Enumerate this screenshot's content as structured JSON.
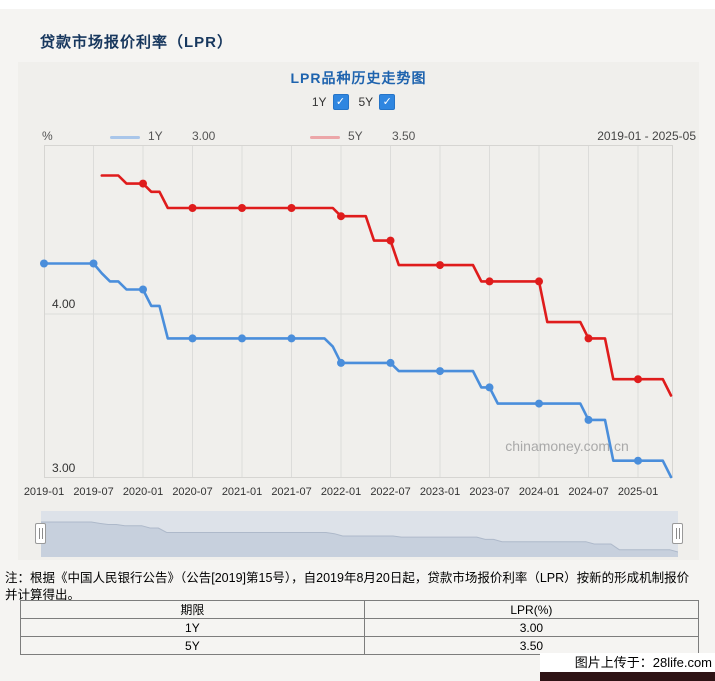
{
  "page": {
    "title": "贷款市场报价利率（LPR）",
    "uploader_watermark": "图片上传于：28life.com"
  },
  "chart": {
    "title": "LPR品种历史走势图",
    "unit": "%",
    "checkboxes": [
      {
        "label": "1Y",
        "checked": true,
        "check_glyph": "✓"
      },
      {
        "label": "5Y",
        "checked": true,
        "check_glyph": "✓"
      }
    ],
    "legend": [
      {
        "label": "1Y",
        "value": "3.00",
        "swatch_color": "#a9c6ea"
      },
      {
        "label": "5Y",
        "value": "3.50",
        "swatch_color": "#eca6a8"
      }
    ],
    "date_range": "2019-01 - 2025-05",
    "watermark": "chinamoney.com.cn",
    "y_tick_labels": [
      "4.00",
      "3.00"
    ],
    "x_tick_labels": [
      "2019-01",
      "2019-07",
      "2020-01",
      "2020-07",
      "2021-01",
      "2021-07",
      "2022-01",
      "2022-07",
      "2023-01",
      "2023-07",
      "2024-01",
      "2024-07",
      "2025-01"
    ]
  },
  "chart_data": {
    "type": "line",
    "title": "LPR品种历史走势图",
    "ylabel": "%",
    "x_range": [
      "2019-01",
      "2025-05"
    ],
    "ylim": [
      3.0,
      5.03
    ],
    "y_ticks": [
      3.0,
      4.0
    ],
    "grid": true,
    "legend_position": "top-left",
    "step_interpolation": "monthly points, value held until next change",
    "markers_at": "every January and July",
    "series": [
      {
        "name": "1Y",
        "color": "#4a8edb",
        "changes": [
          [
            "2019-01",
            4.31
          ],
          [
            "2019-08",
            4.25
          ],
          [
            "2019-09",
            4.2
          ],
          [
            "2019-11",
            4.15
          ],
          [
            "2020-02",
            4.05
          ],
          [
            "2020-04",
            3.85
          ],
          [
            "2021-12",
            3.8
          ],
          [
            "2022-01",
            3.7
          ],
          [
            "2022-08",
            3.65
          ],
          [
            "2023-06",
            3.55
          ],
          [
            "2023-08",
            3.45
          ],
          [
            "2024-07",
            3.35
          ],
          [
            "2024-10",
            3.1
          ],
          [
            "2025-05",
            3.0
          ]
        ],
        "end": "2025-05",
        "latest": 3.0
      },
      {
        "name": "5Y",
        "color": "#df1c1c",
        "changes": [
          [
            "2019-08",
            4.85
          ],
          [
            "2019-11",
            4.8
          ],
          [
            "2020-02",
            4.75
          ],
          [
            "2020-04",
            4.65
          ],
          [
            "2022-01",
            4.6
          ],
          [
            "2022-05",
            4.45
          ],
          [
            "2022-08",
            4.3
          ],
          [
            "2023-06",
            4.2
          ],
          [
            "2024-02",
            3.95
          ],
          [
            "2024-07",
            3.85
          ],
          [
            "2024-10",
            3.6
          ],
          [
            "2025-05",
            3.5
          ]
        ],
        "end": "2025-05",
        "latest": 3.5
      }
    ]
  },
  "note": {
    "line1": "注：根据《中国人民银行公告》（公告[2019]第15号），自2019年8月20日起，贷款市场报价利率（LPR）按新的形成机制报价",
    "line2": "并计算得出。"
  },
  "table": {
    "headers": [
      "期限",
      "LPR(%)"
    ],
    "rows": [
      [
        "1Y",
        "3.00"
      ],
      [
        "5Y",
        "3.50"
      ]
    ]
  }
}
